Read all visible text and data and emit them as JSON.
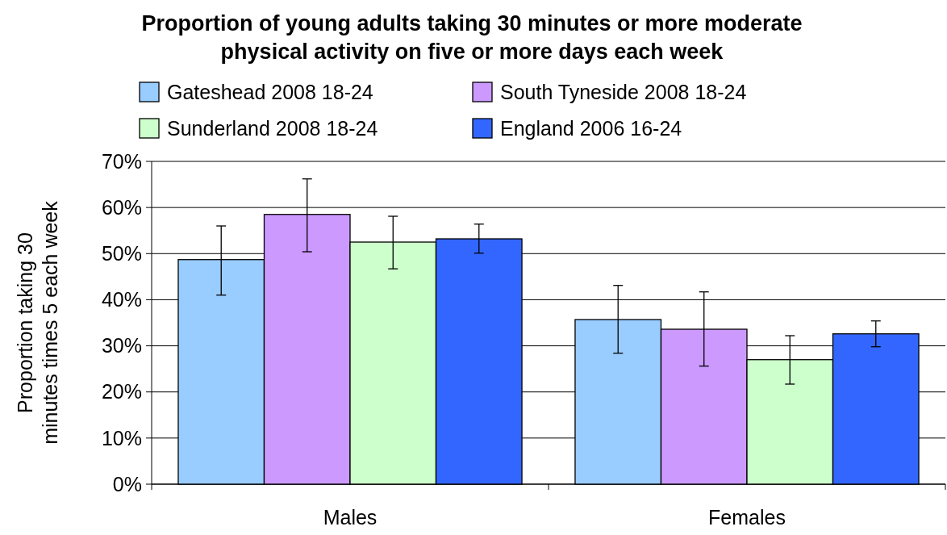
{
  "chart_data": {
    "type": "bar",
    "title": "Proportion of young adults taking 30 minutes or more moderate physical activity on five or more days each week",
    "ylabel": "Proportion taking 30 minutes times 5 each week",
    "categories": [
      "Males",
      "Females"
    ],
    "series": [
      {
        "name": "Gateshead 2008 18-24",
        "color": "#99ccff",
        "values": [
          48.7,
          35.7
        ],
        "errors": [
          [
            41,
            56
          ],
          [
            28.4,
            43.1
          ]
        ]
      },
      {
        "name": "South Tyneside 2008 18-24",
        "color": "#cc99ff",
        "values": [
          58.5,
          33.6
        ],
        "errors": [
          [
            50.4,
            66.2
          ],
          [
            25.6,
            41.7
          ]
        ]
      },
      {
        "name": "Sunderland 2008 18-24",
        "color": "#ccffcc",
        "values": [
          52.5,
          27.0
        ],
        "errors": [
          [
            46.7,
            58.1
          ],
          [
            21.7,
            32.2
          ]
        ]
      },
      {
        "name": "England 2006 16-24",
        "color": "#3366ff",
        "values": [
          53.2,
          32.6
        ],
        "errors": [
          [
            50.1,
            56.4
          ],
          [
            29.8,
            35.4
          ]
        ]
      }
    ],
    "ylim": [
      0,
      70
    ],
    "yticks": [
      {
        "value": 0,
        "label": "0%"
      },
      {
        "value": 10,
        "label": "10%"
      },
      {
        "value": 20,
        "label": "20%"
      },
      {
        "value": 30,
        "label": "30%"
      },
      {
        "value": 40,
        "label": "40%"
      },
      {
        "value": 50,
        "label": "50%"
      },
      {
        "value": 60,
        "label": "60%"
      },
      {
        "value": 70,
        "label": "70%"
      }
    ],
    "grid": "y",
    "legend": "top"
  }
}
